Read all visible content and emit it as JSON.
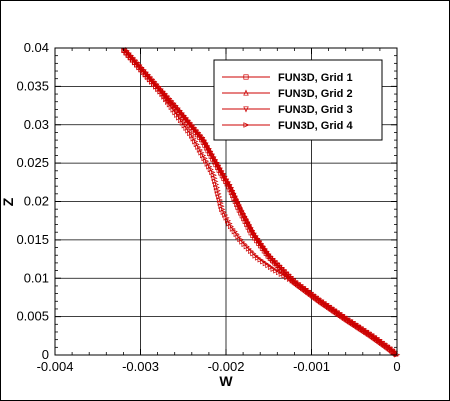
{
  "chart_data": {
    "type": "line",
    "title": "",
    "xlabel": "W",
    "ylabel": "Z",
    "xlim": [
      -0.004,
      0
    ],
    "ylim": [
      0,
      0.04
    ],
    "grid": true,
    "x_ticks": [
      -0.004,
      -0.003,
      -0.002,
      -0.001,
      0
    ],
    "x_tick_labels": [
      "-0.004",
      "-0.003",
      "-0.002",
      "-0.001",
      "0"
    ],
    "y_ticks": [
      0,
      0.005,
      0.01,
      0.015,
      0.02,
      0.025,
      0.03,
      0.035,
      0.04
    ],
    "y_tick_labels": [
      "0",
      "0.005",
      "0.01",
      "0.015",
      "0.02",
      "0.025",
      "0.03",
      "0.035",
      "0.04"
    ],
    "legend_position": "top-right",
    "line_color": "#cc0000",
    "series": [
      {
        "name": "FUN3D, Grid 1",
        "marker": "square",
        "points": [
          [
            -0.00322,
            0.04
          ],
          [
            -0.0029,
            0.036
          ],
          [
            -0.00258,
            0.032
          ],
          [
            -0.00228,
            0.028
          ],
          [
            -0.00205,
            0.0235
          ],
          [
            -0.00197,
            0.022
          ],
          [
            -0.00185,
            0.019
          ],
          [
            -0.0017,
            0.0158
          ],
          [
            -0.0015,
            0.0128
          ],
          [
            -0.0012,
            0.0095
          ],
          [
            -0.0009,
            0.007
          ],
          [
            -0.0006,
            0.0047
          ],
          [
            -0.0003,
            0.0025
          ],
          [
            -0.0001,
            0.0009
          ],
          [
            0,
            0
          ]
        ]
      },
      {
        "name": "FUN3D, Grid 2",
        "marker": "triangle-up",
        "points": [
          [
            -0.0032,
            0.04
          ],
          [
            -0.00288,
            0.036
          ],
          [
            -0.00256,
            0.032
          ],
          [
            -0.00226,
            0.028
          ],
          [
            -0.00202,
            0.0232
          ],
          [
            -0.00193,
            0.0215
          ],
          [
            -0.0018,
            0.0185
          ],
          [
            -0.00166,
            0.0155
          ],
          [
            -0.00148,
            0.0127
          ],
          [
            -0.0012,
            0.0095
          ],
          [
            -0.0009,
            0.007
          ],
          [
            -0.0006,
            0.0047
          ],
          [
            -0.0003,
            0.0025
          ],
          [
            -0.0001,
            0.0009
          ],
          [
            0,
            0
          ]
        ]
      },
      {
        "name": "FUN3D, Grid 3",
        "marker": "triangle-down",
        "points": [
          [
            -0.00321,
            0.04
          ],
          [
            -0.00289,
            0.036
          ],
          [
            -0.00257,
            0.032
          ],
          [
            -0.00227,
            0.028
          ],
          [
            -0.00203,
            0.0233
          ],
          [
            -0.00195,
            0.0218
          ],
          [
            -0.00183,
            0.0188
          ],
          [
            -0.00168,
            0.0157
          ],
          [
            -0.00149,
            0.0127
          ],
          [
            -0.0012,
            0.0095
          ],
          [
            -0.0009,
            0.007
          ],
          [
            -0.0006,
            0.0047
          ],
          [
            -0.0003,
            0.0025
          ],
          [
            -0.0001,
            0.0009
          ],
          [
            0,
            0
          ]
        ]
      },
      {
        "name": "FUN3D, Grid 4",
        "marker": "triangle-right",
        "points": [
          [
            -0.00321,
            0.04
          ],
          [
            -0.00275,
            0.034
          ],
          [
            -0.0024,
            0.0285
          ],
          [
            -0.00215,
            0.0235
          ],
          [
            -0.00205,
            0.019
          ],
          [
            -0.00195,
            0.0168
          ],
          [
            -0.00182,
            0.0148
          ],
          [
            -0.00165,
            0.0128
          ],
          [
            -0.00145,
            0.0112
          ],
          [
            -0.0012,
            0.0095
          ],
          [
            -0.0009,
            0.007
          ],
          [
            -0.0006,
            0.0047
          ],
          [
            -0.0003,
            0.0025
          ],
          [
            -0.0001,
            0.0009
          ],
          [
            0,
            0
          ]
        ]
      }
    ]
  }
}
